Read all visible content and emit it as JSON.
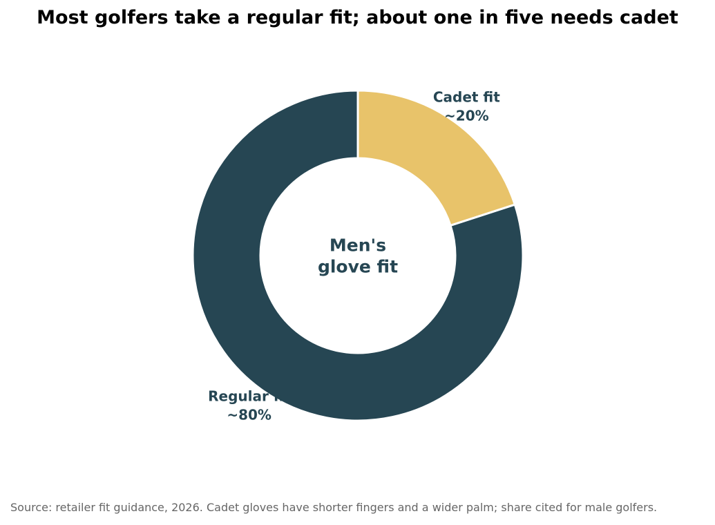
{
  "chart_data": {
    "type": "pie",
    "variant": "donut",
    "title": "Most golfers take a regular fit; about one in five needs cadet",
    "center_label": [
      "Men's",
      "glove fit"
    ],
    "slices": [
      {
        "name": "Cadet fit",
        "value": 20,
        "value_label": "~20%",
        "color": "#E8C36A"
      },
      {
        "name": "Regular fit",
        "value": 80,
        "value_label": "~80%",
        "color": "#264653"
      }
    ],
    "label_color": "#264653",
    "source": "Source: retailer fit guidance, 2026. Cadet gloves have shorter fingers and a wider palm; share cited for male golfers."
  }
}
